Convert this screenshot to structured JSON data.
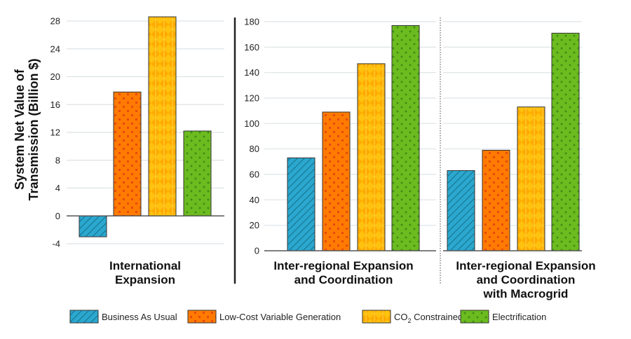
{
  "chart_data": {
    "type": "bar",
    "ylabel_lines": [
      "System Net Value of",
      "Transmission (Billion $)"
    ],
    "legend": {
      "placement": "bottom",
      "entries": [
        {
          "name": "Business As Usual",
          "color": "#2aa8cf",
          "pattern": "diagonal-hatch"
        },
        {
          "name": "Low-Cost Variable Generation",
          "color": "#ff7b00",
          "pattern": "squares"
        },
        {
          "name": "CO",
          "subscript": "2",
          "suffix": " Constrained",
          "color": "#ffc20e",
          "pattern": "diamonds"
        },
        {
          "name": "Electrification",
          "color": "#6cbb1f",
          "pattern": "dots"
        }
      ]
    },
    "grid": true,
    "panels": [
      {
        "label_lines": [
          "International",
          "Expansion"
        ],
        "ylim": [
          -4,
          28
        ],
        "yticks": [
          -4,
          0,
          4,
          8,
          12,
          16,
          20,
          24,
          28
        ],
        "values": [
          -3.0,
          17.8,
          28.6,
          12.2
        ]
      },
      {
        "label_lines": [
          "Inter-regional Expansion",
          "and Coordination"
        ],
        "ylim": [
          0,
          180
        ],
        "yticks": [
          0,
          20,
          40,
          60,
          80,
          100,
          120,
          140,
          160,
          180
        ],
        "values": [
          73,
          109,
          147,
          177
        ]
      },
      {
        "label_lines": [
          "Inter-regional Expansion",
          "and Coordination",
          "with Macrogrid"
        ],
        "ylim": [
          0,
          180
        ],
        "values": [
          63,
          79,
          113,
          171
        ]
      }
    ]
  }
}
